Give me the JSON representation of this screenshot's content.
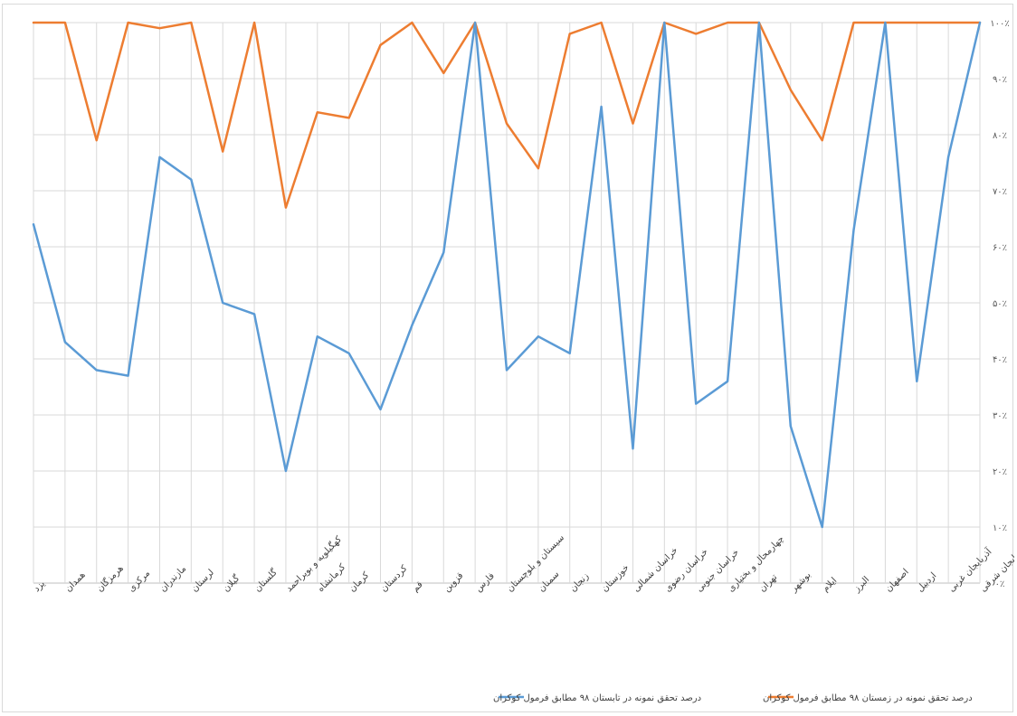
{
  "chart_data": {
    "type": "line",
    "title": "",
    "xlabel": "",
    "ylabel": "",
    "ylim": [
      0,
      100
    ],
    "y_ticks": [
      "۰٪",
      "۱۰٪",
      "۲۰٪",
      "۳۰٪",
      "۴۰٪",
      "۵۰٪",
      "۶۰٪",
      "۷۰٪",
      "۸۰٪",
      "۹۰٪",
      "۱۰۰٪"
    ],
    "grid": true,
    "legend_position": "bottom",
    "categories": [
      "یزد",
      "همدان",
      "هرمزگان",
      "مرکزی",
      "مازندران",
      "لرستان",
      "گیلان",
      "گلستان",
      "کهگیلویه و بویراحمد",
      "کرمانشاه",
      "کرمان",
      "کردستان",
      "قم",
      "قزوین",
      "فارس",
      "سیستان و بلوچستان",
      "سمنان",
      "زنجان",
      "خوزستان",
      "خراسان شمالی",
      "خراسان رضوی",
      "خراسان جنوبی",
      "چهارمحال و بختیاری",
      "تهران",
      "بوشهر",
      "ایلام",
      "البرز",
      "اصفهان",
      "اردبیل",
      "آذربایجان غربی",
      "آذربایجان شرقی"
    ],
    "series": [
      {
        "name": "درصد تحقق نمونه در زمستان ۹۸ مطابق فرمول کوکران",
        "color": "#ED7D31",
        "values": [
          100,
          100,
          79,
          100,
          99,
          100,
          77,
          100,
          67,
          84,
          83,
          96,
          100,
          91,
          100,
          82,
          74,
          98,
          100,
          82,
          100,
          98,
          100,
          100,
          88,
          79,
          100,
          100,
          100,
          100,
          100
        ]
      },
      {
        "name": "درصد تحقق نمونه در تابستان ۹۸ مطابق فرمول کوکران",
        "color": "#5B9BD5",
        "values": [
          64,
          43,
          38,
          37,
          76,
          72,
          50,
          48,
          20,
          44,
          41,
          31,
          46,
          59,
          100,
          38,
          44,
          41,
          85,
          24,
          100,
          32,
          36,
          100,
          28,
          10,
          63,
          100,
          36,
          76,
          100
        ]
      }
    ]
  }
}
